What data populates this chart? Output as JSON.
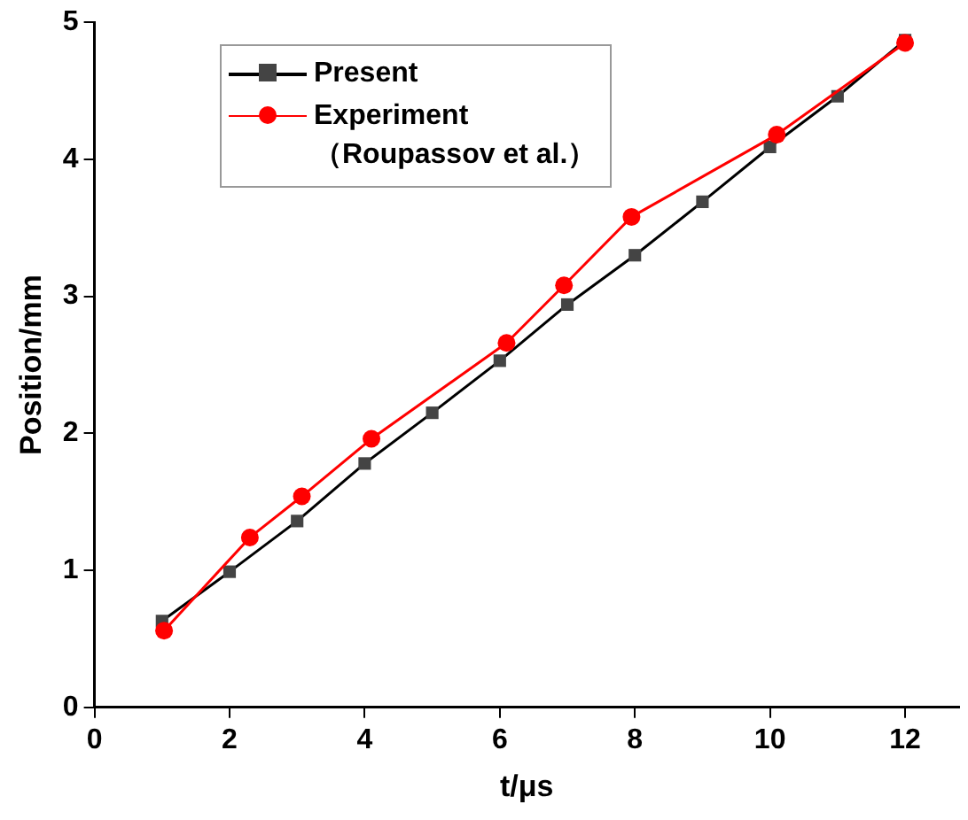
{
  "chart_data": {
    "type": "line",
    "xlabel": "t/μs",
    "ylabel": "Position/mm",
    "xlim": [
      0,
      12.8
    ],
    "xticks": [
      0,
      2,
      4,
      6,
      8,
      10,
      12
    ],
    "ylim": [
      0,
      5
    ],
    "yticks": [
      0,
      1,
      2,
      3,
      4,
      5
    ],
    "grid": false,
    "legend": "top left",
    "line_style": "solid",
    "series": [
      {
        "name": "Present",
        "color": "#000000",
        "marker": "square",
        "x": [
          1,
          2,
          3,
          4,
          5,
          6,
          7,
          8,
          9,
          10,
          11,
          12
        ],
        "values": [
          0.63,
          0.99,
          1.36,
          1.78,
          2.15,
          2.53,
          2.94,
          3.3,
          3.69,
          4.09,
          4.46,
          4.87
        ]
      },
      {
        "name": "Experiment\n（Roupassov et al.）",
        "color": "#ff0000",
        "marker": "circle",
        "x": [
          1.03,
          2.3,
          3.07,
          4.1,
          6.1,
          6.95,
          7.95,
          10.1,
          12.0
        ],
        "values": [
          0.56,
          1.24,
          1.54,
          1.96,
          2.66,
          3.08,
          3.58,
          4.18,
          4.85
        ]
      }
    ]
  }
}
